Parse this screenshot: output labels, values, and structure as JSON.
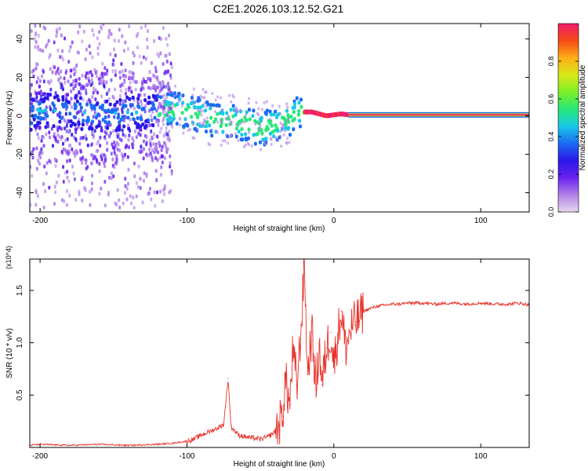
{
  "title": "C2E1.2026.103.12.52.G21",
  "colors": {
    "snr_line": "#e8332b",
    "colormap": [
      "#e8d8f0",
      "#b080e8",
      "#6a22f0",
      "#2a18e8",
      "#1a6cf2",
      "#18c8e8",
      "#26e878",
      "#7cf028",
      "#d8e818",
      "#ffae18",
      "#f64a14",
      "#ee1e6e"
    ]
  },
  "chart_data": [
    {
      "id": "spectrogram",
      "type": "heatmap",
      "xlabel": "Height of straight line (km)",
      "ylabel": "Frequency (Hz)",
      "xlim": [
        -207,
        133
      ],
      "ylim": [
        -50,
        48
      ],
      "xticks": [
        -200,
        -100,
        0,
        100
      ],
      "xtick_labels": [
        "-200",
        "-100",
        "0",
        "100"
      ],
      "yticks": [
        -40,
        -20,
        0,
        20,
        40
      ],
      "ytick_labels": [
        "-40",
        "-20",
        "0",
        "20",
        "40"
      ],
      "colorbar": {
        "label": "Normalized spectral amplitude",
        "range": [
          0,
          1
        ],
        "ticks": [
          0.0,
          0.2,
          0.4,
          0.6,
          0.8
        ],
        "tick_labels": [
          "0.0",
          "0.2",
          "0.4",
          "0.6",
          "0.8"
        ]
      },
      "ridge": {
        "x": [
          -205,
          -180,
          -150,
          -125,
          -110,
          -100,
          -90,
          -80,
          -70,
          -60,
          -50,
          -45,
          -40,
          -35,
          -30,
          -25,
          -20,
          -15,
          -10,
          -5,
          0,
          5,
          10,
          133
        ],
        "frequency_hz": [
          3,
          2,
          1,
          2,
          3,
          2,
          0,
          -2,
          -3,
          -4,
          -7,
          -6,
          -5,
          -3,
          -1,
          1,
          2,
          2,
          1,
          0,
          0.5,
          1,
          0.5,
          0.5
        ]
      },
      "regions": [
        {
          "x_range": [
            -207,
            -125
          ],
          "description_value": "broadband noise, spread 48 Hz, amplitude 0.1-0.35"
        },
        {
          "x_range": [
            -125,
            -20
          ],
          "description_value": "ridge amplitude 0.3-0.55"
        },
        {
          "x_range": [
            -20,
            10
          ],
          "description_value": "ridge amplitude 0.9-1.0"
        },
        {
          "x_range": [
            10,
            133
          ],
          "description_value": "constant line amplitude 1.0 at 0.5 Hz"
        }
      ]
    },
    {
      "id": "snr",
      "type": "line",
      "xlabel": "Height of straight line (km)",
      "ylabel": "SNR (10 * v/v)",
      "y_multiplier": "(x10^4)",
      "xlim": [
        -207,
        133
      ],
      "ylim": [
        0,
        1.8
      ],
      "xticks": [
        -200,
        -100,
        0,
        100
      ],
      "xtick_labels": [
        "-200",
        "-100",
        "0",
        "100"
      ],
      "yticks": [
        0.5,
        1.0,
        1.5
      ],
      "ytick_labels": [
        "0.5",
        "1.0",
        "1.5"
      ],
      "series": [
        {
          "name": "SNR",
          "x": [
            -207,
            -200,
            -180,
            -160,
            -140,
            -120,
            -110,
            -100,
            -95,
            -90,
            -85,
            -80,
            -75,
            -72,
            -70,
            -65,
            -60,
            -55,
            -50,
            -45,
            -40,
            -38,
            -35,
            -33,
            -30,
            -28,
            -25,
            -22,
            -20,
            -18,
            -15,
            -12,
            -10,
            -8,
            -5,
            -2,
            0,
            3,
            5,
            8,
            10,
            12,
            15,
            18,
            20,
            25,
            30,
            35,
            40,
            45,
            50,
            60,
            70,
            80,
            90,
            100,
            110,
            120,
            125,
            130,
            133
          ],
          "y": [
            0.02,
            0.03,
            0.02,
            0.03,
            0.02,
            0.03,
            0.04,
            0.06,
            0.08,
            0.12,
            0.15,
            0.18,
            0.22,
            0.66,
            0.2,
            0.12,
            0.1,
            0.09,
            0.08,
            0.1,
            0.15,
            0.2,
            0.3,
            0.65,
            0.4,
            0.9,
            0.6,
            1.2,
            1.8,
            0.7,
            1.1,
            0.55,
            1.0,
            0.6,
            0.95,
            1.1,
            0.8,
            1.1,
            1.3,
            0.95,
            1.05,
            1.15,
            1.2,
            1.25,
            1.3,
            1.33,
            1.35,
            1.36,
            1.37,
            1.37,
            1.38,
            1.38,
            1.37,
            1.38,
            1.37,
            1.38,
            1.37,
            1.37,
            1.38,
            1.37,
            1.36
          ]
        }
      ]
    }
  ]
}
